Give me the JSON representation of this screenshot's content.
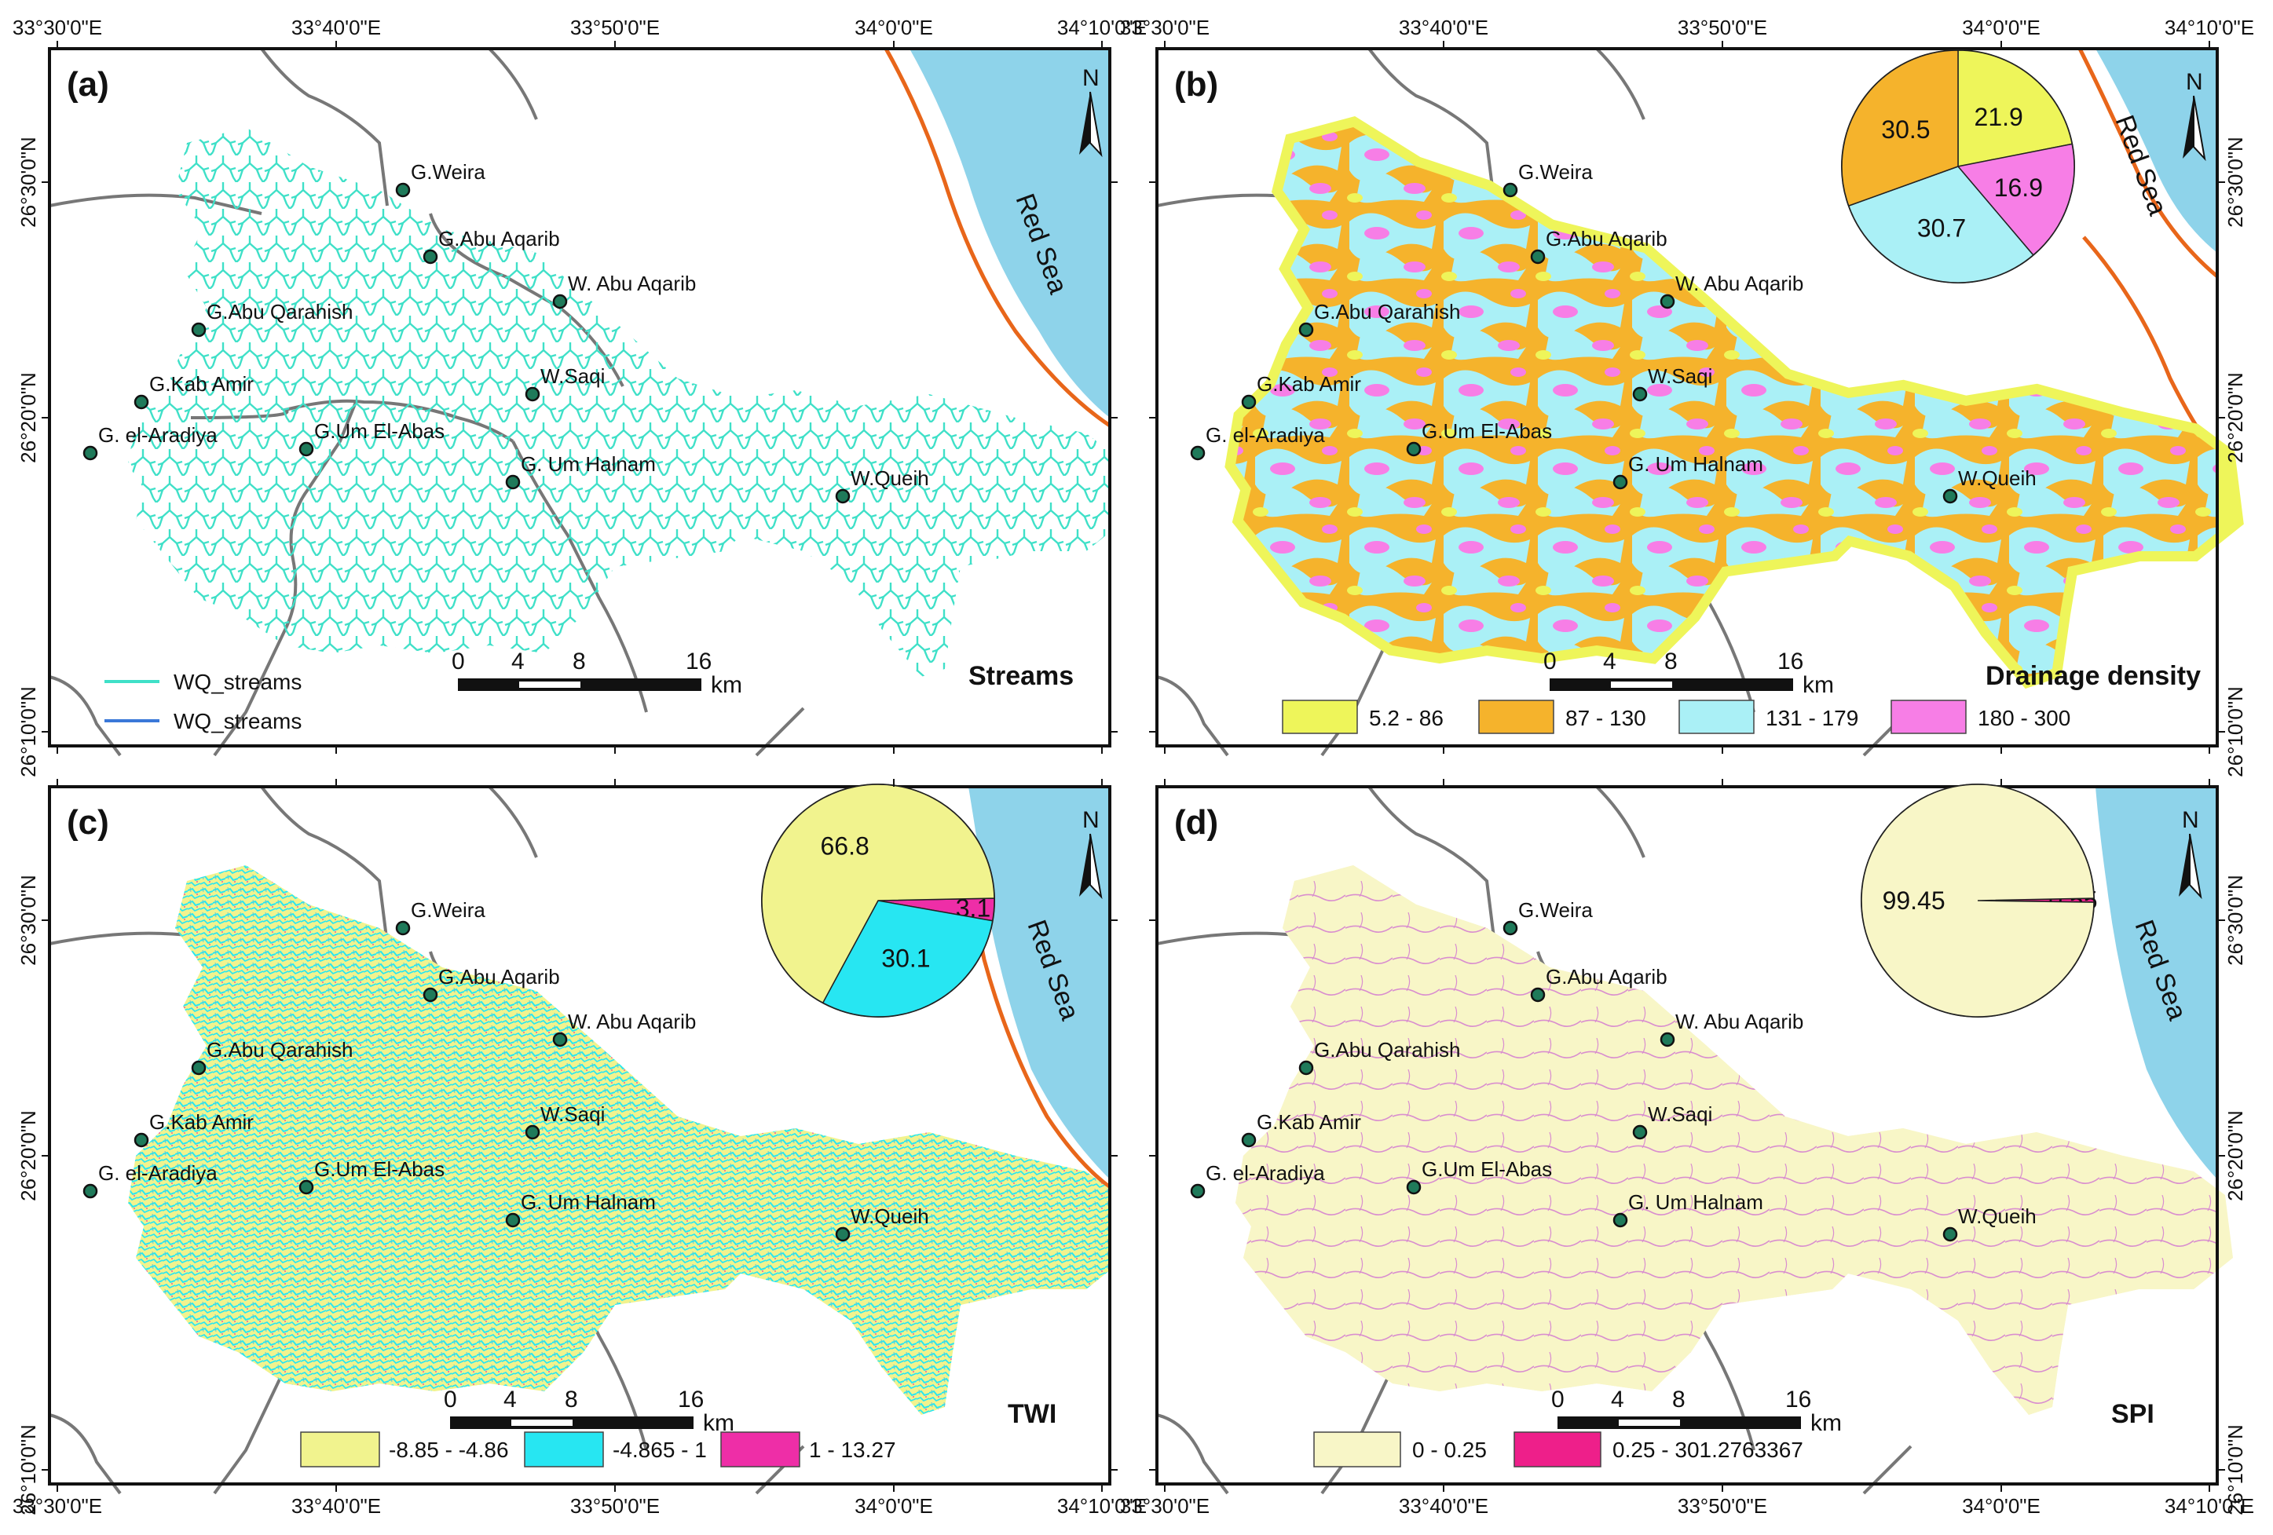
{
  "top_lon_ticks": [
    "33°30'0\"E",
    "33°40'0\"E",
    "33°50'0\"E",
    "34°0'0\"E",
    "34°10'0\"E"
  ],
  "bottom_lon_ticks": [
    "33°30'0\"E",
    "33°40'0\"E",
    "33°50'0\"E",
    "34°0'0\"E",
    "34°10'0\"E"
  ],
  "lat_ticks": [
    "26°30'0\"N",
    "26°20'0\"N",
    "26°10'0\"N"
  ],
  "places": [
    "G.Weira",
    "G.Abu Aqarib",
    "W. Abu Aqarib",
    "G.Abu Qarahish",
    "G.Kab Amir",
    "W.Saqi",
    "G. el-Aradiya",
    "G.Um El-Abas",
    "G. Um Halnam",
    "W.Queih"
  ],
  "sea_label": "Red Sea",
  "north_label": "N",
  "scale": {
    "ticks": [
      "0",
      "4",
      "8",
      "16"
    ],
    "unit": "km"
  },
  "colors": {
    "sea": "#8ed3ea",
    "coast": "#e8661a",
    "road": "#777777",
    "stream": "#3fe0c8",
    "stream_alt": "#3a78d8",
    "dd1": "#eef55a",
    "dd2": "#f5b32c",
    "dd3": "#aaf0f6",
    "dd4": "#f77ee6",
    "twi1": "#f1f38e",
    "twi2": "#27e6f2",
    "twi3": "#ee2ea7",
    "spi1": "#f8f6c7",
    "spi2": "#ee1f8a"
  },
  "panels": [
    {
      "label": "(a)",
      "title": "Streams",
      "legend": [
        {
          "label": "WQ_streams",
          "color": "#3fe0c8"
        },
        {
          "label": "WQ_streams",
          "color": "#3a78d8"
        }
      ]
    },
    {
      "label": "(b)",
      "title": "Drainage density",
      "legend": [
        {
          "label": "5.2 - 86",
          "color": "#eef55a"
        },
        {
          "label": "87 - 130",
          "color": "#f5b32c"
        },
        {
          "label": "131 - 179",
          "color": "#aaf0f6"
        },
        {
          "label": "180 - 300",
          "color": "#f77ee6"
        }
      ]
    },
    {
      "label": "(c)",
      "title": "TWI",
      "legend": [
        {
          "label": "-8.85 - -4.86",
          "color": "#f1f38e"
        },
        {
          "label": "-4.865 - 1",
          "color": "#27e6f2"
        },
        {
          "label": "1 - 13.27",
          "color": "#ee2ea7"
        }
      ]
    },
    {
      "label": "(d)",
      "title": "SPI",
      "legend": [
        {
          "label": "0 - 0.25",
          "color": "#f8f6c7"
        },
        {
          "label": "0.25 - 301.2763367",
          "color": "#ee1f8a"
        }
      ]
    }
  ],
  "chart_data": [
    {
      "type": "pie",
      "panel": "(b)",
      "slices": [
        {
          "value": 21.9,
          "color": "#eef55a",
          "label": "21.9"
        },
        {
          "value": 16.9,
          "color": "#f77ee6",
          "label": "16.9"
        },
        {
          "value": 30.7,
          "color": "#aaf0f6",
          "label": "30.7"
        },
        {
          "value": 30.5,
          "color": "#f5b32c",
          "label": "30.5"
        }
      ]
    },
    {
      "type": "pie",
      "panel": "(c)",
      "slices": [
        {
          "value": 3.1,
          "color": "#ee2ea7",
          "label": "3.1"
        },
        {
          "value": 30.1,
          "color": "#27e6f2",
          "label": "30.1"
        },
        {
          "value": 66.8,
          "color": "#f1f38e",
          "label": "66.8"
        }
      ]
    },
    {
      "type": "pie",
      "panel": "(d)",
      "slices": [
        {
          "value": 0.55,
          "color": "#ee1f8a",
          "label": "0.55"
        },
        {
          "value": 99.45,
          "color": "#f8f6c7",
          "label": "99.45"
        }
      ]
    }
  ]
}
